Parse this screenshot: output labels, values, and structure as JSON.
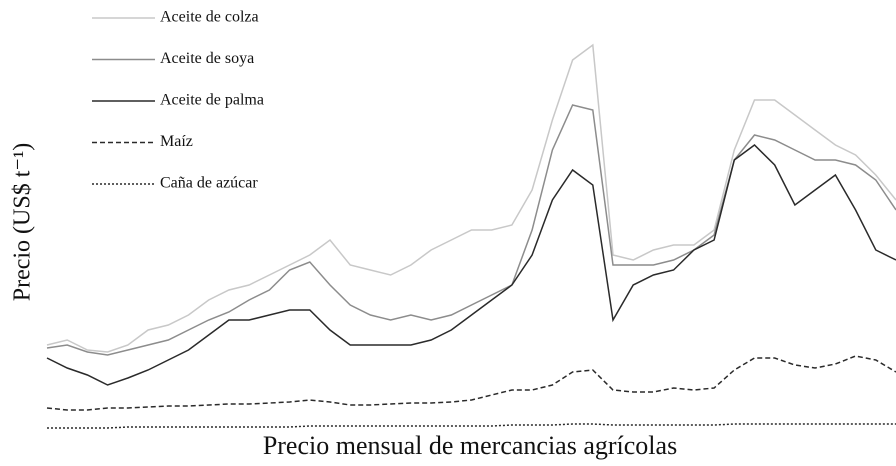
{
  "chart_data": {
    "type": "line",
    "xlabel": "Precio mensual de mercancias agrícolas",
    "ylabel": "Precio (US$ t⁻¹)",
    "ylim": [
      0,
      420
    ],
    "categories": [
      null,
      null,
      null,
      null,
      null,
      null,
      null,
      null,
      null,
      null,
      null,
      null,
      null,
      null,
      null,
      null,
      null,
      null,
      null,
      null,
      null,
      null,
      null,
      null,
      null,
      null,
      null,
      null,
      null,
      null,
      null,
      null,
      null,
      null,
      null,
      null,
      null,
      null,
      null,
      null,
      null,
      null,
      null
    ],
    "series": [
      {
        "name": "Aceite de colza",
        "color": "#c8c8c8",
        "style": "solid",
        "values": [
          95,
          100,
          90,
          88,
          95,
          110,
          115,
          125,
          140,
          150,
          155,
          165,
          175,
          185,
          200,
          175,
          170,
          165,
          175,
          190,
          200,
          210,
          210,
          215,
          250,
          320,
          380,
          395,
          185,
          180,
          190,
          195,
          195,
          210,
          290,
          340,
          340,
          325,
          310,
          295,
          285,
          265,
          240
        ]
      },
      {
        "name": "Aceite de soya",
        "color": "#8c8c8c",
        "style": "solid",
        "values": [
          92,
          95,
          88,
          85,
          90,
          95,
          100,
          110,
          120,
          128,
          140,
          150,
          170,
          178,
          155,
          135,
          125,
          120,
          125,
          120,
          125,
          135,
          145,
          155,
          210,
          290,
          335,
          330,
          175,
          175,
          175,
          180,
          190,
          205,
          280,
          305,
          300,
          290,
          280,
          280,
          275,
          260,
          230
        ]
      },
      {
        "name": "Aceite de palma",
        "color": "#2a2a2a",
        "style": "solid",
        "values": [
          82,
          72,
          65,
          55,
          62,
          70,
          80,
          90,
          105,
          120,
          120,
          125,
          130,
          130,
          110,
          95,
          95,
          95,
          95,
          100,
          110,
          125,
          140,
          155,
          185,
          240,
          270,
          255,
          120,
          155,
          165,
          170,
          190,
          200,
          280,
          295,
          275,
          235,
          250,
          265,
          230,
          190,
          180
        ]
      },
      {
        "name": "Maíz",
        "color": "#2a2a2a",
        "style": "dashed",
        "values": [
          32,
          30,
          30,
          32,
          32,
          33,
          34,
          34,
          35,
          36,
          36,
          37,
          38,
          40,
          38,
          35,
          35,
          36,
          37,
          37,
          38,
          40,
          45,
          50,
          50,
          55,
          68,
          70,
          50,
          48,
          48,
          52,
          50,
          52,
          70,
          82,
          82,
          75,
          72,
          76,
          84,
          80,
          68
        ]
      },
      {
        "name": "Caña de azúcar",
        "color": "#2a2a2a",
        "style": "dotted",
        "values": [
          12,
          12,
          12,
          12,
          13,
          13,
          13,
          13,
          13,
          13,
          13,
          13,
          13,
          14,
          14,
          14,
          14,
          14,
          14,
          14,
          14,
          14,
          14,
          15,
          15,
          15,
          16,
          16,
          15,
          15,
          15,
          15,
          15,
          15,
          16,
          16,
          16,
          16,
          16,
          16,
          16,
          16,
          16
        ]
      }
    ]
  }
}
